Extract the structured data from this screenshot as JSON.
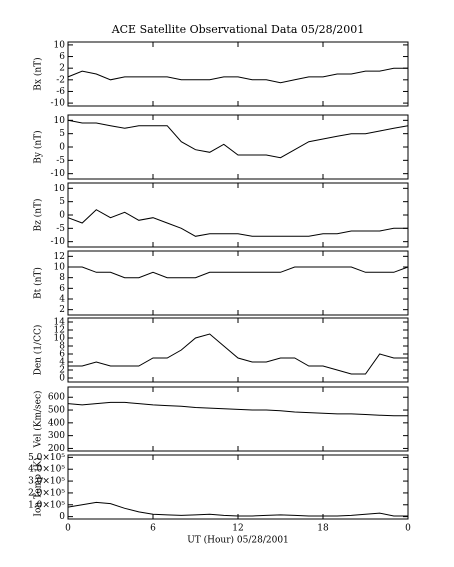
{
  "chart_data": [
    {
      "type": "line",
      "title": "ACE Satellite Observational Data   05/28/2001",
      "y_label": "Bx (nT)",
      "x": [
        0,
        1,
        2,
        3,
        4,
        5,
        6,
        7,
        8,
        9,
        10,
        11,
        12,
        13,
        14,
        15,
        16,
        17,
        18,
        19,
        20,
        21,
        22,
        23,
        24
      ],
      "values": [
        -1,
        1,
        0,
        -2,
        -1,
        -1,
        -1,
        -1,
        -2,
        -2,
        -2,
        -1,
        -1,
        -2,
        -2,
        -3,
        -2,
        -1,
        -1,
        0,
        0,
        1,
        1,
        2,
        2
      ],
      "xlim": [
        0,
        24
      ],
      "ylim": [
        -11,
        11
      ],
      "yticks": [
        10,
        6,
        2,
        -2,
        -6,
        -10
      ],
      "color": "#000000"
    },
    {
      "type": "line",
      "y_label": "By (nT)",
      "x": [
        0,
        1,
        2,
        3,
        4,
        5,
        6,
        7,
        8,
        9,
        10,
        11,
        12,
        13,
        14,
        15,
        16,
        17,
        18,
        19,
        20,
        21,
        22,
        23,
        24
      ],
      "values": [
        10,
        9,
        9,
        8,
        7,
        8,
        8,
        8,
        2,
        -1,
        -2,
        1,
        -3,
        -3,
        -3,
        -4,
        -1,
        2,
        3,
        4,
        5,
        5,
        6,
        7,
        8
      ],
      "xlim": [
        0,
        24
      ],
      "ylim": [
        -12,
        12
      ],
      "yticks": [
        10,
        5,
        0,
        -5,
        -10
      ],
      "color": "#000000"
    },
    {
      "type": "line",
      "y_label": "Bz (nT)",
      "x": [
        0,
        1,
        2,
        3,
        4,
        5,
        6,
        7,
        8,
        9,
        10,
        11,
        12,
        13,
        14,
        15,
        16,
        17,
        18,
        19,
        20,
        21,
        22,
        23,
        24
      ],
      "values": [
        -1,
        -3,
        2,
        -1,
        1,
        -2,
        -1,
        -3,
        -5,
        -8,
        -7,
        -7,
        -7,
        -8,
        -8,
        -8,
        -8,
        -8,
        -7,
        -7,
        -6,
        -6,
        -6,
        -5,
        -5
      ],
      "xlim": [
        0,
        24
      ],
      "ylim": [
        -12,
        12
      ],
      "yticks": [
        10,
        5,
        0,
        -5,
        -10
      ],
      "color": "#000000"
    },
    {
      "type": "line",
      "y_label": "Bt (nT)",
      "x": [
        0,
        1,
        2,
        3,
        4,
        5,
        6,
        7,
        8,
        9,
        10,
        11,
        12,
        13,
        14,
        15,
        16,
        17,
        18,
        19,
        20,
        21,
        22,
        23,
        24
      ],
      "values": [
        10,
        10,
        9,
        9,
        8,
        8,
        9,
        8,
        8,
        8,
        9,
        9,
        9,
        9,
        9,
        9,
        10,
        10,
        10,
        10,
        10,
        9,
        9,
        9,
        10
      ],
      "xlim": [
        0,
        24
      ],
      "ylim": [
        1,
        13
      ],
      "yticks": [
        12,
        10,
        8,
        6,
        4,
        2
      ],
      "color": "#000000"
    },
    {
      "type": "line",
      "y_label": "Den (1/CC)",
      "x": [
        0,
        1,
        2,
        3,
        4,
        5,
        6,
        7,
        8,
        9,
        10,
        11,
        12,
        13,
        14,
        15,
        16,
        17,
        18,
        19,
        20,
        21,
        22,
        23,
        24
      ],
      "values": [
        3,
        3,
        4,
        3,
        3,
        3,
        5,
        5,
        7,
        10,
        11,
        8,
        5,
        4,
        4,
        5,
        5,
        3,
        3,
        2,
        1,
        1,
        6,
        5,
        5
      ],
      "xlim": [
        0,
        24
      ],
      "ylim": [
        -1,
        15
      ],
      "yticks": [
        14,
        12,
        10,
        8,
        6,
        4,
        2,
        0
      ],
      "color": "#000000"
    },
    {
      "type": "line",
      "y_label": "Vel (Km/sec)",
      "x": [
        0,
        1,
        2,
        3,
        4,
        5,
        6,
        7,
        8,
        9,
        10,
        11,
        12,
        13,
        14,
        15,
        16,
        17,
        18,
        19,
        20,
        21,
        22,
        23,
        24
      ],
      "values": [
        550,
        540,
        550,
        560,
        560,
        550,
        540,
        535,
        530,
        520,
        515,
        510,
        505,
        500,
        500,
        495,
        485,
        480,
        475,
        470,
        470,
        465,
        460,
        455,
        455
      ],
      "xlim": [
        0,
        24
      ],
      "ylim": [
        180,
        680
      ],
      "yticks": [
        600,
        500,
        400,
        300,
        200
      ],
      "color": "#000000"
    },
    {
      "type": "line",
      "y_label": "Ion Temp (K)",
      "x_label": "UT (Hour)   05/28/2001",
      "x": [
        0,
        1,
        2,
        3,
        4,
        5,
        6,
        7,
        8,
        9,
        10,
        11,
        12,
        13,
        14,
        15,
        16,
        17,
        18,
        19,
        20,
        21,
        22,
        23,
        24
      ],
      "values": [
        80000,
        100000,
        120000,
        110000,
        70000,
        40000,
        20000,
        15000,
        10000,
        15000,
        20000,
        10000,
        5000,
        5000,
        10000,
        15000,
        10000,
        5000,
        5000,
        5000,
        10000,
        20000,
        30000,
        5000,
        5000
      ],
      "xlim": [
        0,
        24
      ],
      "ylim": [
        -20000,
        520000
      ],
      "yticks": [
        {
          "value": 500000,
          "label": "5.0×10⁵"
        },
        {
          "value": 400000,
          "label": "4.0×10⁵"
        },
        {
          "value": 300000,
          "label": "3.0×10⁵"
        },
        {
          "value": 200000,
          "label": "2.0×10⁵"
        },
        {
          "value": 100000,
          "label": "1.0×10⁵"
        },
        0
      ],
      "xticks": [
        0,
        6,
        12,
        18,
        {
          "value": 24,
          "label": "0"
        }
      ],
      "color": "#000000"
    }
  ]
}
